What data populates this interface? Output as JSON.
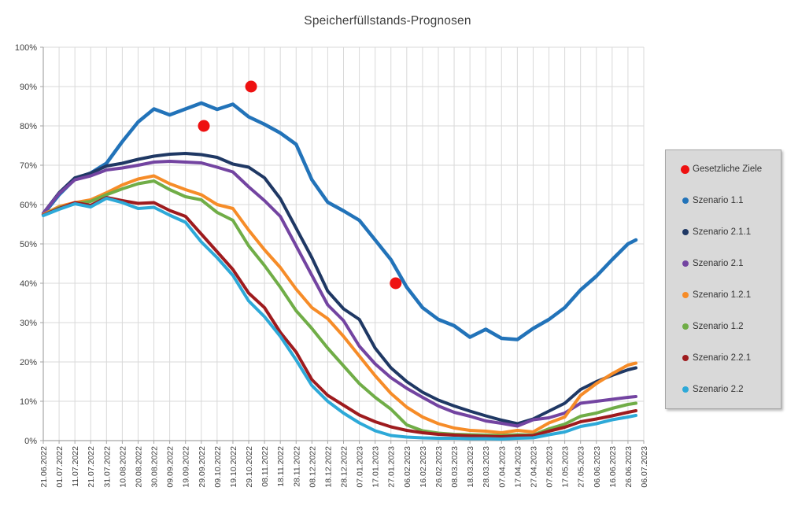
{
  "title": "Speicherfüllstands-Prognosen",
  "chart_data": {
    "type": "line",
    "title": "Speicherfüllstands-Prognosen",
    "xlabel": "",
    "ylabel": "",
    "ylim": [
      0,
      100
    ],
    "grid": true,
    "legend_position": "right",
    "y_tick_labels": [
      "0%",
      "10%",
      "20%",
      "30%",
      "40%",
      "50%",
      "60%",
      "70%",
      "80%",
      "90%",
      "100%"
    ],
    "x_tick_labels": [
      "21.06.2022",
      "01.07.2022",
      "11.07.2022",
      "21.07.2022",
      "31.07.2022",
      "10.08.2022",
      "20.08.2022",
      "30.08.2022",
      "09.09.2022",
      "19.09.2022",
      "29.09.2022",
      "09.10.2022",
      "19.10.2022",
      "29.10.2022",
      "08.11.2022",
      "18.11.2022",
      "28.11.2022",
      "08.12.2022",
      "18.12.2022",
      "28.12.2022",
      "07.01.2023",
      "17.01.2023",
      "27.01.2023",
      "06.02.2023",
      "16.02.2023",
      "26.02.2023",
      "08.03.2023",
      "18.03.2023",
      "28.03.2023",
      "07.04.2023",
      "17.04.2023",
      "27.04.2023",
      "07.05.2023",
      "17.05.2023",
      "27.05.2023",
      "06.06.2023",
      "16.06.2023",
      "26.06.2023",
      "06.07.2023"
    ],
    "series": [
      {
        "name": "Gesetzliche Ziele",
        "color": "#ee1111",
        "type": "points",
        "points": [
          {
            "x": 10.16,
            "y": 80
          },
          {
            "x": 13.15,
            "y": 90
          },
          {
            "x": 22.3,
            "y": 40
          }
        ]
      },
      {
        "name": "Szenario 1.1",
        "color": "#2273b9",
        "type": "line",
        "values": [
          57.5,
          62.5,
          66.5,
          68,
          70.5,
          76,
          81,
          84.3,
          82.8,
          84.3,
          85.8,
          84.2,
          85.5,
          82.3,
          80.4,
          78.2,
          75.3,
          66.3,
          60.6,
          58.4,
          56,
          51,
          46,
          39,
          33.8,
          30.8,
          29.2,
          26.3,
          28.3,
          26,
          25.7,
          28.5,
          30.8,
          33.8,
          38.3,
          41.8,
          46,
          50,
          51
        ]
      },
      {
        "name": "Szenario 2.1.1",
        "color": "#1f3864",
        "type": "line",
        "values": [
          57.8,
          63,
          66.8,
          68,
          69.8,
          70.5,
          71.5,
          72.3,
          72.8,
          73,
          72.7,
          72,
          70.3,
          69.5,
          66.8,
          61.5,
          54,
          46.5,
          38,
          33.5,
          30.8,
          23.5,
          18.5,
          15,
          12.3,
          10.3,
          8.8,
          7.5,
          6.3,
          5.2,
          4.3,
          5.5,
          7.5,
          9.5,
          13,
          15,
          16.6,
          18,
          18.5
        ]
      },
      {
        "name": "Szenario 2.1",
        "color": "#7344a1",
        "type": "line",
        "values": [
          57.8,
          62.8,
          66.3,
          67.3,
          68.8,
          69.3,
          70,
          70.8,
          71,
          70.8,
          70.6,
          69.5,
          68.3,
          64.5,
          61,
          57,
          49.5,
          42,
          34.5,
          30.5,
          24,
          19.5,
          16,
          13.3,
          11,
          8.8,
          7.2,
          6.2,
          5,
          4.4,
          3.7,
          5.3,
          5.8,
          7,
          9.5,
          10,
          10.5,
          11,
          11.2
        ]
      },
      {
        "name": "Szenario 1.2.1",
        "color": "#f68c28",
        "type": "line",
        "values": [
          57.5,
          59.5,
          60.5,
          61.2,
          63,
          65,
          66.5,
          67.3,
          65.3,
          63.8,
          62.5,
          60,
          59,
          53.5,
          48.5,
          44,
          38.5,
          33.8,
          31,
          26.5,
          21.5,
          16.5,
          12,
          8.5,
          6,
          4.3,
          3.2,
          2.6,
          2.4,
          2,
          2.6,
          2.2,
          4.5,
          6,
          11.5,
          14.5,
          17,
          19.2,
          19.7
        ]
      },
      {
        "name": "Szenario 1.2",
        "color": "#70ad47",
        "type": "line",
        "values": [
          57.3,
          59.2,
          60.2,
          60.8,
          62.5,
          64,
          65.3,
          66,
          63.8,
          62,
          61.2,
          58,
          56,
          49.5,
          44.5,
          39,
          33,
          28.5,
          23.5,
          19,
          14.5,
          11,
          8,
          4,
          2.5,
          1.9,
          1.6,
          1.5,
          1.4,
          1.3,
          1.5,
          1.4,
          3,
          4.2,
          6.2,
          7,
          8.2,
          9.2,
          9.5
        ]
      },
      {
        "name": "Szenario 2.2.1",
        "color": "#9e1b1e",
        "type": "line",
        "values": [
          57.3,
          59,
          60.5,
          59.8,
          61.8,
          61,
          60.3,
          60.5,
          58.5,
          57,
          52.5,
          48,
          43.5,
          37.5,
          33.8,
          27.5,
          22.5,
          15.5,
          11.5,
          9,
          6.5,
          4.8,
          3.5,
          2.6,
          2,
          1.6,
          1.4,
          1.2,
          1.1,
          1,
          1.2,
          1.3,
          2.4,
          3.4,
          4.8,
          5.5,
          6.3,
          7.2,
          7.6
        ]
      },
      {
        "name": "Szenario 2.2",
        "color": "#2da9d8",
        "type": "line",
        "values": [
          57.2,
          58.8,
          60.2,
          59.4,
          61.6,
          60.5,
          59,
          59.3,
          57.3,
          55.5,
          50.5,
          46.5,
          42,
          35.5,
          31.5,
          26.5,
          20.5,
          14,
          10,
          7,
          4.5,
          2.5,
          1.3,
          0.9,
          0.7,
          0.6,
          0.6,
          0.5,
          0.5,
          0.4,
          0.6,
          0.7,
          1.5,
          2.2,
          3.6,
          4.3,
          5.3,
          6,
          6.4
        ]
      }
    ],
    "colors": {
      "grid": "#d9d9d9",
      "axis": "#a6a6a6",
      "label": "#404040",
      "target_red": "#ee1111"
    }
  }
}
